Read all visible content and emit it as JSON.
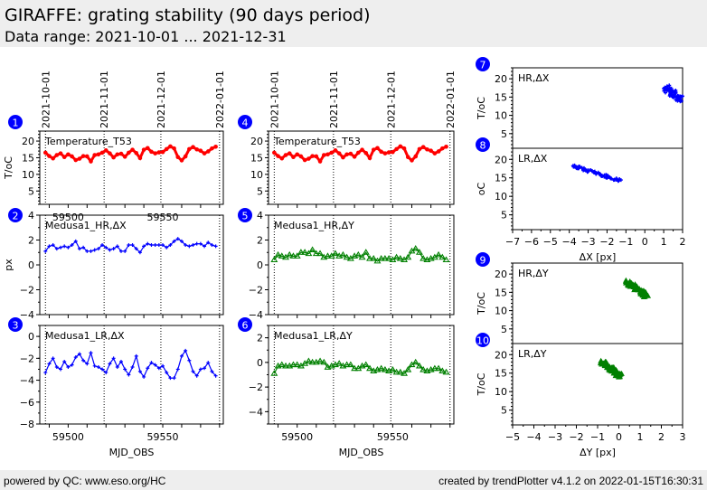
{
  "header": {
    "title": "GIRAFFE: grating stability (90 days period)",
    "subtitle": "Data range: 2021-10-01 ... 2021-12-31"
  },
  "footer": {
    "left": "powered by QC: www.eso.org/HC",
    "right": "created by trendPlotter v4.1.2 on 2022-01-15T16:30:31"
  },
  "colors": {
    "red": "#ff0000",
    "blue": "#0000ff",
    "green": "#008000",
    "badge": "#0000ff",
    "header_bg": "#eeeeee"
  },
  "chart_data": [
    {
      "id": 1,
      "type": "line",
      "label": "Temperature_T53",
      "ylabel": "T/oC",
      "color": "#ff0000",
      "marker": "dot",
      "ylim": [
        1,
        23
      ],
      "yticks": [
        5,
        10,
        15,
        20
      ],
      "xlim": [
        59485,
        59582
      ],
      "xticks": [
        59500,
        59550
      ],
      "date_ticks": [
        {
          "mjd": 59488,
          "label": "2021-10-01"
        },
        {
          "mjd": 59519,
          "label": "2021-11-01"
        },
        {
          "mjd": 59549,
          "label": "2021-12-01"
        },
        {
          "mjd": 59580,
          "label": "2022-01-01"
        }
      ],
      "x": [
        59488,
        59490,
        59492,
        59494,
        59496,
        59498,
        59500,
        59502,
        59504,
        59506,
        59508,
        59510,
        59512,
        59514,
        59516,
        59518,
        59520,
        59522,
        59524,
        59526,
        59528,
        59530,
        59532,
        59534,
        59536,
        59538,
        59540,
        59542,
        59544,
        59546,
        59548,
        59550,
        59552,
        59554,
        59556,
        59558,
        59560,
        59562,
        59564,
        59566,
        59568,
        59570,
        59572,
        59574,
        59576,
        59578
      ],
      "y": [
        16.5,
        15.5,
        14.8,
        15.8,
        16.3,
        15.2,
        16.0,
        15.4,
        14.3,
        14.7,
        15.5,
        15.4,
        13.9,
        15.8,
        16.0,
        16.5,
        17.2,
        16.3,
        15.1,
        16.0,
        16.2,
        15.3,
        16.5,
        17.4,
        16.4,
        14.9,
        17.4,
        17.9,
        16.8,
        16.3,
        16.6,
        16.7,
        17.6,
        18.4,
        17.8,
        15.2,
        14.2,
        15.4,
        17.6,
        18.2,
        17.5,
        17.1,
        16.3,
        16.9,
        17.8,
        18.3
      ]
    },
    {
      "id": 2,
      "type": "line",
      "label": "Medusa1_HR,ΔX",
      "ylabel": "px",
      "color": "#0000ff",
      "marker": "plus",
      "ylim": [
        -4,
        4
      ],
      "yticks": [
        -4,
        -2,
        0,
        2,
        4
      ],
      "xlim": [
        59485,
        59582
      ],
      "x": [
        59488,
        59490,
        59492,
        59494,
        59496,
        59498,
        59500,
        59502,
        59504,
        59506,
        59508,
        59510,
        59512,
        59514,
        59516,
        59518,
        59520,
        59522,
        59524,
        59526,
        59528,
        59530,
        59532,
        59534,
        59536,
        59538,
        59540,
        59542,
        59544,
        59546,
        59548,
        59550,
        59552,
        59554,
        59556,
        59558,
        59560,
        59562,
        59564,
        59566,
        59568,
        59570,
        59572,
        59574,
        59576,
        59578
      ],
      "y": [
        1.1,
        1.5,
        1.6,
        1.3,
        1.4,
        1.5,
        1.4,
        1.6,
        1.9,
        1.3,
        1.4,
        1.1,
        1.1,
        1.2,
        1.3,
        1.6,
        1.4,
        1.2,
        1.3,
        1.5,
        1.1,
        1.1,
        1.6,
        1.6,
        1.3,
        1.0,
        1.5,
        1.7,
        1.6,
        1.6,
        1.6,
        1.6,
        1.4,
        1.6,
        1.9,
        2.1,
        1.9,
        1.6,
        1.5,
        1.6,
        1.7,
        1.7,
        1.5,
        1.8,
        1.6,
        1.5
      ]
    },
    {
      "id": 3,
      "type": "line",
      "label": "Medusa1_LR,ΔX",
      "ylabel": "",
      "xlabel": "MJD_OBS",
      "color": "#0000ff",
      "marker": "plus",
      "ylim": [
        -8,
        1
      ],
      "yticks": [
        -8,
        -6,
        -4,
        -2,
        0
      ],
      "xlim": [
        59485,
        59582
      ],
      "xticks": [
        59500,
        59550
      ],
      "x": [
        59488,
        59490,
        59492,
        59494,
        59496,
        59498,
        59500,
        59502,
        59504,
        59506,
        59508,
        59510,
        59512,
        59514,
        59516,
        59518,
        59520,
        59522,
        59524,
        59526,
        59528,
        59530,
        59532,
        59534,
        59536,
        59538,
        59540,
        59542,
        59544,
        59546,
        59548,
        59550,
        59552,
        59554,
        59556,
        59558,
        59560,
        59562,
        59564,
        59566,
        59568,
        59570,
        59572,
        59574,
        59576,
        59578
      ],
      "y": [
        -3.3,
        -2.5,
        -2.0,
        -2.8,
        -3.0,
        -2.3,
        -2.8,
        -2.6,
        -1.9,
        -1.6,
        -2.2,
        -2.5,
        -1.5,
        -2.7,
        -2.8,
        -3.0,
        -3.3,
        -2.5,
        -2.0,
        -2.8,
        -2.3,
        -3.0,
        -3.5,
        -2.8,
        -1.8,
        -3.2,
        -3.7,
        -2.9,
        -2.4,
        -2.6,
        -2.9,
        -2.7,
        -3.3,
        -3.8,
        -3.8,
        -3.0,
        -1.8,
        -1.3,
        -2.2,
        -3.2,
        -3.6,
        -3.0,
        -2.9,
        -2.4,
        -3.2,
        -3.6
      ]
    },
    {
      "id": 4,
      "type": "line",
      "label": "Temperature_T53",
      "ylabel": "",
      "color": "#ff0000",
      "marker": "dot",
      "ylim": [
        1,
        23
      ],
      "yticks": [
        5,
        10,
        15,
        20
      ],
      "xlim": [
        59485,
        59582
      ],
      "date_ticks": [
        {
          "mjd": 59488,
          "label": "2021-10-01"
        },
        {
          "mjd": 59519,
          "label": "2021-11-01"
        },
        {
          "mjd": 59549,
          "label": "2021-12-01"
        },
        {
          "mjd": 59580,
          "label": "2022-01-01"
        }
      ],
      "x": [
        59488,
        59490,
        59492,
        59494,
        59496,
        59498,
        59500,
        59502,
        59504,
        59506,
        59508,
        59510,
        59512,
        59514,
        59516,
        59518,
        59520,
        59522,
        59524,
        59526,
        59528,
        59530,
        59532,
        59534,
        59536,
        59538,
        59540,
        59542,
        59544,
        59546,
        59548,
        59550,
        59552,
        59554,
        59556,
        59558,
        59560,
        59562,
        59564,
        59566,
        59568,
        59570,
        59572,
        59574,
        59576,
        59578
      ],
      "y": [
        16.5,
        15.5,
        14.8,
        15.8,
        16.3,
        15.2,
        16.0,
        15.4,
        14.3,
        14.7,
        15.5,
        15.4,
        13.9,
        15.8,
        16.0,
        16.5,
        17.2,
        16.3,
        15.1,
        16.0,
        16.2,
        15.3,
        16.5,
        17.4,
        16.4,
        14.9,
        17.4,
        17.9,
        16.8,
        16.3,
        16.6,
        16.7,
        17.6,
        18.4,
        17.8,
        15.2,
        14.2,
        15.4,
        17.6,
        18.2,
        17.5,
        17.1,
        16.3,
        16.9,
        17.8,
        18.3
      ]
    },
    {
      "id": 5,
      "type": "line",
      "label": "Medusa1_HR,ΔY",
      "ylabel": "",
      "color": "#008000",
      "marker": "triangle",
      "ylim": [
        -4,
        4
      ],
      "yticks": [
        -4,
        -2,
        0,
        2,
        4
      ],
      "xlim": [
        59485,
        59582
      ],
      "x": [
        59488,
        59490,
        59492,
        59494,
        59496,
        59498,
        59500,
        59502,
        59504,
        59506,
        59508,
        59510,
        59512,
        59514,
        59516,
        59518,
        59520,
        59522,
        59524,
        59526,
        59528,
        59530,
        59532,
        59534,
        59536,
        59538,
        59540,
        59542,
        59544,
        59546,
        59548,
        59550,
        59552,
        59554,
        59556,
        59558,
        59560,
        59562,
        59564,
        59566,
        59568,
        59570,
        59572,
        59574,
        59576,
        59578
      ],
      "y": [
        0.4,
        0.8,
        0.7,
        0.6,
        0.8,
        0.7,
        0.7,
        1.0,
        1.0,
        0.9,
        1.2,
        0.9,
        0.9,
        0.6,
        0.7,
        0.7,
        0.9,
        0.7,
        0.8,
        0.6,
        0.5,
        0.7,
        0.8,
        0.6,
        1.0,
        0.5,
        0.5,
        0.3,
        0.5,
        0.5,
        0.5,
        0.4,
        0.6,
        0.5,
        0.4,
        0.6,
        1.1,
        1.3,
        1.0,
        0.5,
        0.4,
        0.5,
        0.6,
        0.8,
        0.6,
        0.4
      ]
    },
    {
      "id": 6,
      "type": "line",
      "label": "Medusa1_LR,ΔY",
      "ylabel": "",
      "xlabel": "MJD_OBS",
      "color": "#008000",
      "marker": "triangle",
      "ylim": [
        -5,
        3
      ],
      "yticks": [
        -4,
        -2,
        0,
        2
      ],
      "xlim": [
        59485,
        59582
      ],
      "xticks": [
        59500,
        59550
      ],
      "x": [
        59488,
        59490,
        59492,
        59494,
        59496,
        59498,
        59500,
        59502,
        59504,
        59506,
        59508,
        59510,
        59512,
        59514,
        59516,
        59518,
        59520,
        59522,
        59524,
        59526,
        59528,
        59530,
        59532,
        59534,
        59536,
        59538,
        59540,
        59542,
        59544,
        59546,
        59548,
        59550,
        59552,
        59554,
        59556,
        59558,
        59560,
        59562,
        59564,
        59566,
        59568,
        59570,
        59572,
        59574,
        59576,
        59578
      ],
      "y": [
        -0.9,
        -0.3,
        -0.2,
        -0.3,
        -0.3,
        -0.2,
        -0.2,
        -0.3,
        -0.1,
        0.1,
        0.0,
        0.0,
        0.1,
        0.0,
        -0.4,
        -0.3,
        -0.2,
        -0.1,
        -0.3,
        -0.2,
        -0.2,
        -0.5,
        -0.5,
        -0.3,
        -0.2,
        -0.5,
        -0.7,
        -0.6,
        -0.5,
        -0.6,
        -0.7,
        -0.6,
        -0.8,
        -0.8,
        -0.9,
        -0.6,
        -0.2,
        0.0,
        -0.3,
        -0.6,
        -0.7,
        -0.6,
        -0.5,
        -0.5,
        -0.7,
        -0.8
      ]
    },
    {
      "id": 7,
      "type": "scatter",
      "label": "HR,ΔX",
      "ylabel": "T/oC",
      "color": "#0000ff",
      "marker": "plus",
      "xlim": [
        -7,
        2
      ],
      "ylim": [
        1,
        23
      ],
      "yticks": [
        5,
        10,
        15,
        20
      ],
      "clusters": [
        {
          "x_from": 1.1,
          "x_to": 1.9,
          "y_from": 17.5,
          "y_to": 14.5,
          "spread_x": 0.35,
          "spread_y": 1.8,
          "n": 70
        }
      ]
    },
    {
      "id": 8,
      "type": "scatter",
      "label": "LR,ΔX",
      "ylabel": "oC",
      "xlabel": "ΔX [px]",
      "color": "#0000ff",
      "marker": "plus",
      "xlim": [
        -7,
        2
      ],
      "ylim": [
        1,
        23
      ],
      "yticks": [
        5,
        10,
        15,
        20
      ],
      "xticks": [
        -7,
        -6,
        -5,
        -4,
        -3,
        -2,
        -1,
        0,
        1,
        2
      ],
      "clusters": [
        {
          "x_from": -3.8,
          "x_to": -1.3,
          "y_from": 18.3,
          "y_to": 14.2,
          "spread_x": 0.15,
          "spread_y": 0.8,
          "n": 80
        }
      ]
    },
    {
      "id": 9,
      "type": "scatter",
      "label": "HR,ΔY",
      "ylabel": "T/oC",
      "color": "#008000",
      "marker": "triangle",
      "xlim": [
        -5,
        3
      ],
      "ylim": [
        1,
        23
      ],
      "yticks": [
        5,
        10,
        15,
        20
      ],
      "clusters": [
        {
          "x_from": 0.4,
          "x_to": 1.3,
          "y_from": 17.8,
          "y_to": 14.2,
          "spread_x": 0.25,
          "spread_y": 1.0,
          "n": 70
        }
      ]
    },
    {
      "id": 10,
      "type": "scatter",
      "label": "LR,ΔY",
      "ylabel": "T/oC",
      "xlabel": "ΔY [px]",
      "color": "#008000",
      "marker": "triangle",
      "xlim": [
        -5,
        3
      ],
      "ylim": [
        1,
        23
      ],
      "yticks": [
        5,
        10,
        15,
        20
      ],
      "xticks": [
        -5,
        -4,
        -3,
        -2,
        -1,
        0,
        1,
        2,
        3
      ],
      "clusters": [
        {
          "x_from": -0.8,
          "x_to": 0.1,
          "y_from": 18.0,
          "y_to": 14.2,
          "spread_x": 0.25,
          "spread_y": 1.0,
          "n": 70
        }
      ]
    }
  ]
}
